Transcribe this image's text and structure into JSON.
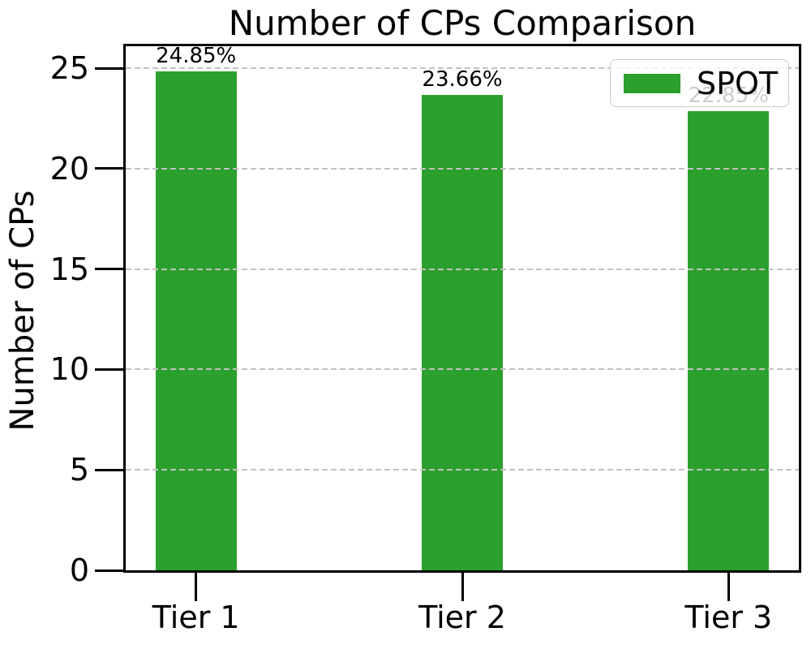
{
  "title": "Number of CPs Comparison",
  "chart_data": {
    "type": "bar",
    "title": "Number of CPs Comparison",
    "xlabel": "",
    "ylabel": "Number of CPs",
    "categories": [
      "Tier 1",
      "Tier 2",
      "Tier 3"
    ],
    "series": [
      {
        "name": "SPOT",
        "color": "#2ca02c",
        "values": [
          24.85,
          23.66,
          22.85
        ]
      }
    ],
    "bar_labels": [
      "24.85%",
      "23.66%",
      "22.85%"
    ],
    "ylim": [
      0,
      26.1
    ],
    "yticks": [
      0,
      5,
      10,
      15,
      20,
      25
    ],
    "grid": "horizontal-dashed",
    "grid_color": "#c2c2c2",
    "axis_color": "#000000",
    "background_color": "#ffffff",
    "legend": {
      "position": "upper-right",
      "entries": [
        "SPOT"
      ]
    }
  }
}
